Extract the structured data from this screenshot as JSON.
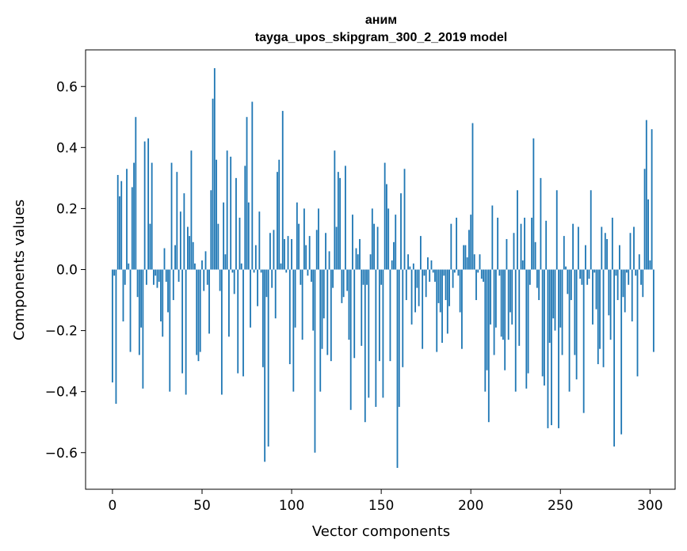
{
  "chart_data": {
    "type": "bar",
    "title": "аним",
    "subtitle": "tayga_upos_skipgram_300_2_2019 model",
    "xlabel": "Vector components",
    "ylabel": "Components values",
    "xlim": [
      -15,
      314
    ],
    "ylim": [
      -0.72,
      0.72
    ],
    "xticks": [
      0,
      50,
      100,
      150,
      200,
      250,
      300
    ],
    "yticks": [
      -0.6,
      -0.4,
      -0.2,
      0.0,
      0.2,
      0.4,
      0.6
    ],
    "xtick_labels": [
      "0",
      "50",
      "100",
      "150",
      "200",
      "250",
      "300"
    ],
    "ytick_labels": [
      "−0.6",
      "−0.4",
      "−0.2",
      "0.0",
      "0.2",
      "0.4",
      "0.6"
    ],
    "bar_color": "#1f77b4",
    "values": [
      -0.37,
      -0.02,
      -0.44,
      0.31,
      0.24,
      0.29,
      -0.17,
      -0.05,
      0.33,
      0.02,
      -0.27,
      0.27,
      0.35,
      0.5,
      -0.09,
      -0.28,
      -0.19,
      -0.39,
      0.42,
      -0.05,
      0.43,
      0.15,
      0.35,
      -0.05,
      -0.02,
      -0.06,
      -0.04,
      -0.17,
      -0.22,
      0.07,
      -0.04,
      -0.14,
      -0.4,
      0.35,
      -0.1,
      0.08,
      0.32,
      -0.04,
      0.19,
      -0.34,
      0.25,
      -0.41,
      0.14,
      0.11,
      0.39,
      0.09,
      0.02,
      -0.28,
      -0.3,
      -0.27,
      0.03,
      -0.07,
      0.06,
      -0.05,
      -0.21,
      0.26,
      0.56,
      0.66,
      0.36,
      0.15,
      -0.07,
      -0.41,
      0.22,
      0.05,
      0.39,
      -0.22,
      0.37,
      -0.01,
      -0.08,
      0.3,
      -0.34,
      0.17,
      0.02,
      -0.35,
      0.34,
      0.5,
      0.22,
      -0.19,
      0.55,
      -0.01,
      0.08,
      -0.12,
      0.19,
      -0.01,
      -0.32,
      -0.63,
      -0.09,
      -0.58,
      0.12,
      -0.06,
      0.13,
      -0.16,
      0.32,
      0.36,
      0.02,
      0.52,
      0.1,
      -0.01,
      0.11,
      -0.31,
      0.1,
      -0.4,
      -0.19,
      0.22,
      0.15,
      -0.05,
      -0.23,
      0.2,
      0.08,
      -0.02,
      0.11,
      -0.04,
      -0.2,
      -0.6,
      0.13,
      0.2,
      -0.4,
      -0.26,
      -0.16,
      0.12,
      -0.28,
      0.06,
      -0.3,
      -0.06,
      0.39,
      0.14,
      0.32,
      0.3,
      -0.11,
      -0.09,
      0.34,
      -0.07,
      -0.23,
      -0.46,
      0.18,
      -0.29,
      0.07,
      0.05,
      0.1,
      -0.25,
      -0.05,
      -0.5,
      -0.05,
      -0.42,
      0.05,
      0.2,
      0.15,
      -0.45,
      0.14,
      -0.3,
      -0.05,
      -0.42,
      0.35,
      0.28,
      0.2,
      -0.3,
      0.03,
      0.09,
      0.18,
      -0.65,
      -0.45,
      0.25,
      -0.32,
      0.33,
      -0.1,
      0.05,
      0.01,
      -0.18,
      0.02,
      -0.14,
      -0.06,
      -0.12,
      0.11,
      -0.26,
      -0.02,
      -0.09,
      0.04,
      -0.04,
      0.03,
      -0.01,
      -0.04,
      -0.27,
      -0.11,
      -0.14,
      -0.24,
      -0.02,
      -0.1,
      -0.21,
      -0.12,
      0.15,
      -0.06,
      -0.01,
      0.17,
      -0.02,
      -0.14,
      -0.26,
      0.08,
      0.08,
      0.04,
      0.13,
      0.18,
      0.48,
      0.05,
      -0.1,
      -0.01,
      0.05,
      -0.03,
      -0.04,
      -0.4,
      -0.33,
      -0.5,
      -0.18,
      0.21,
      -0.28,
      -0.19,
      0.17,
      -0.02,
      -0.22,
      -0.23,
      -0.33,
      0.1,
      -0.23,
      -0.14,
      -0.18,
      0.12,
      -0.4,
      0.26,
      -0.25,
      0.15,
      0.03,
      0.17,
      -0.39,
      -0.34,
      -0.05,
      0.17,
      0.43,
      0.09,
      -0.06,
      -0.1,
      0.3,
      -0.35,
      -0.38,
      0.16,
      -0.52,
      -0.24,
      -0.51,
      -0.16,
      -0.2,
      0.26,
      -0.52,
      -0.19,
      -0.28,
      0.11,
      0.01,
      -0.08,
      -0.4,
      -0.1,
      0.15,
      -0.28,
      -0.36,
      0.14,
      -0.03,
      -0.05,
      -0.47,
      0.08,
      -0.05,
      -0.03,
      0.26,
      -0.18,
      -0.01,
      -0.13,
      -0.31,
      -0.26,
      0.14,
      -0.32,
      0.12,
      0.1,
      -0.15,
      -0.23,
      0.17,
      -0.58,
      -0.02,
      -0.1,
      0.08,
      -0.54,
      -0.09,
      -0.14,
      -0.01,
      -0.05,
      0.12,
      -0.17,
      0.14,
      -0.02,
      -0.35,
      0.05,
      -0.05,
      -0.09,
      0.33,
      0.49,
      0.23,
      0.03,
      0.46,
      -0.27
    ]
  }
}
